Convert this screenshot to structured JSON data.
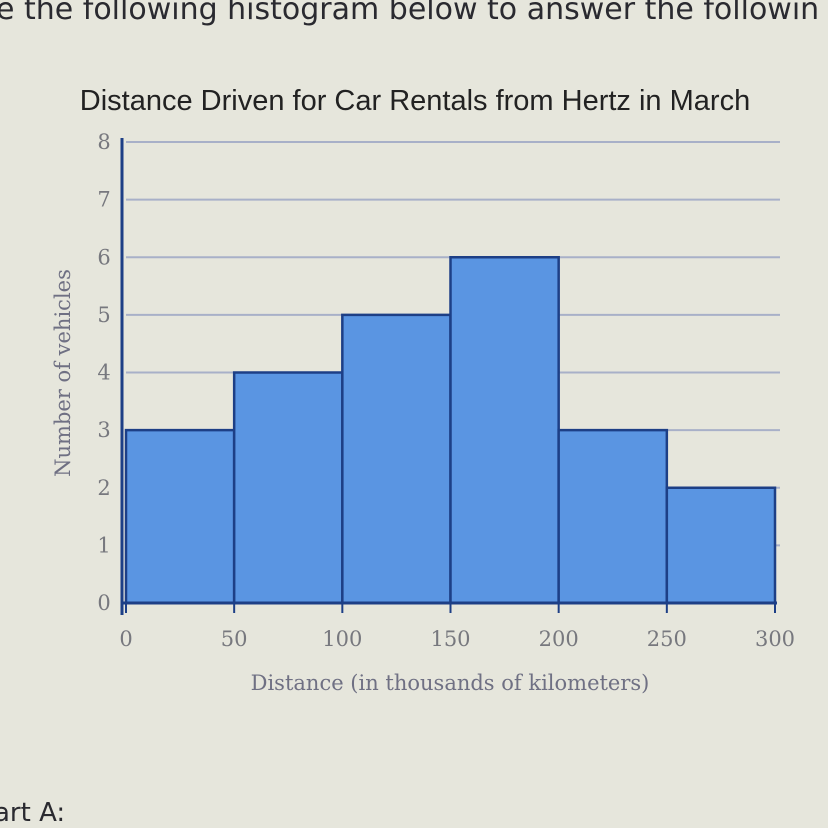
{
  "intro_text": "e the following histogram below to answer the followin",
  "part_label": "art A:",
  "colors": {
    "bar_fill": "#5a95e2",
    "bar_edge": "#1d3f86",
    "grid": "#a8b0c8",
    "background": "#e6e6dc"
  },
  "chart_data": {
    "type": "bar",
    "title": "Distance Driven for Car Rentals from Hertz in March",
    "xlabel": "Distance (in thousands of kilometers)",
    "ylabel": "Number of vehicles",
    "bins": [
      [
        0,
        50
      ],
      [
        50,
        100
      ],
      [
        100,
        150
      ],
      [
        150,
        200
      ],
      [
        200,
        250
      ],
      [
        250,
        300
      ]
    ],
    "values": [
      3,
      4,
      5,
      6,
      3,
      2
    ],
    "xlim": [
      0,
      300
    ],
    "ylim": [
      0,
      8
    ],
    "xticks": [
      "0",
      "50",
      "100",
      "150",
      "200",
      "250",
      "300"
    ],
    "yticks": [
      "0",
      "1",
      "2",
      "3",
      "4",
      "5",
      "6",
      "7",
      "8"
    ],
    "grid": true
  }
}
